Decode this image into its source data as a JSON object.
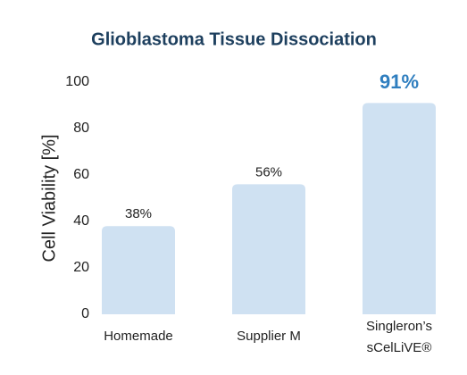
{
  "chart_data": {
    "type": "bar",
    "title": "Glioblastoma Tissue Dissociation",
    "y_label": "Cell Viability [%]",
    "categories": [
      "Homemade",
      "Supplier M",
      "Singleron’s sCelLiVE®"
    ],
    "values": [
      38,
      56,
      91
    ],
    "value_labels": [
      "38%",
      "56%",
      "91%"
    ],
    "value_label_colors": [
      "#222222",
      "#222222",
      "#2f7ebf"
    ],
    "color": "#cfe1f2",
    "ylim": [
      0,
      100
    ],
    "yticks": [
      0,
      20,
      40,
      60,
      80,
      100
    ],
    "grid": false
  }
}
